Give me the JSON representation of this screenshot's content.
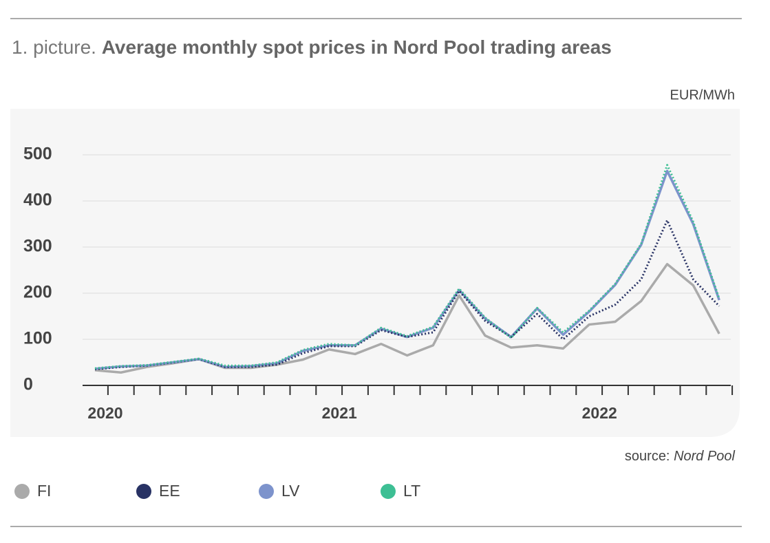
{
  "chart_data": {
    "type": "line",
    "title_prefix": "1. picture.",
    "title": "Average monthly spot prices in Nord Pool trading areas",
    "unit": "EUR/MWh",
    "source_label": "source:",
    "source": "Nord Pool",
    "categories": [
      "2020",
      null,
      null,
      null,
      null,
      null,
      null,
      null,
      null,
      "2021",
      null,
      null,
      null,
      null,
      null,
      null,
      null,
      null,
      null,
      "2022",
      null,
      null,
      null,
      null,
      null
    ],
    "ylim": [
      0,
      500
    ],
    "yticks": [
      0,
      100,
      200,
      300,
      400,
      500
    ],
    "grid": true,
    "series": [
      {
        "name": "FI",
        "color": "#aaaaaa",
        "dash": false,
        "values": [
          33,
          28,
          40,
          48,
          57,
          38,
          38,
          45,
          56,
          78,
          68,
          90,
          65,
          87,
          195,
          108,
          82,
          87,
          80,
          132,
          138,
          183,
          263,
          217,
          112
        ]
      },
      {
        "name": "EE",
        "color": "#283264",
        "dash": true,
        "values": [
          35,
          40,
          43,
          50,
          57,
          40,
          40,
          45,
          70,
          85,
          85,
          120,
          105,
          115,
          205,
          140,
          105,
          155,
          100,
          150,
          175,
          230,
          358,
          230,
          172
        ]
      },
      {
        "name": "LV",
        "color": "#7d93cc",
        "dash": false,
        "values": [
          36,
          41,
          43,
          50,
          57,
          40,
          42,
          48,
          75,
          87,
          87,
          123,
          105,
          125,
          207,
          145,
          105,
          167,
          110,
          160,
          218,
          305,
          465,
          350,
          185
        ]
      },
      {
        "name": "LT",
        "color": "#3dbf94",
        "dash": true,
        "values": [
          37,
          42,
          44,
          51,
          58,
          43,
          43,
          50,
          77,
          90,
          87,
          125,
          107,
          127,
          210,
          147,
          103,
          168,
          115,
          162,
          220,
          307,
          478,
          355,
          188
        ]
      }
    ]
  }
}
